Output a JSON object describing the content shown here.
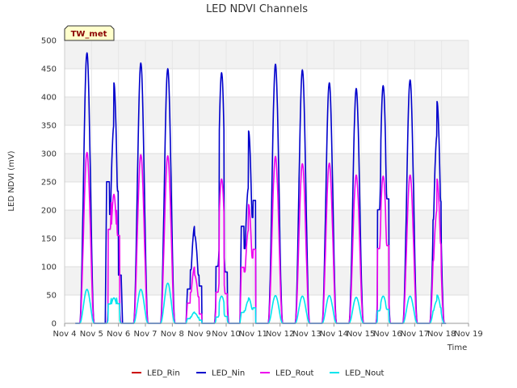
{
  "chart_data": {
    "type": "line",
    "title": "LED NDVI Channels",
    "xlabel": "Time",
    "ylabel": "LED NDVI (mV)",
    "site_label": "TW_met",
    "ylim": [
      0,
      500
    ],
    "yticks": [
      0,
      50,
      100,
      150,
      200,
      250,
      300,
      350,
      400,
      450,
      500
    ],
    "xlim": [
      4,
      19
    ],
    "xticks": [
      4,
      5,
      6,
      7,
      8,
      9,
      10,
      11,
      12,
      13,
      14,
      15,
      16,
      17,
      18,
      19
    ],
    "xtick_labels": [
      "Nov 4",
      "Nov 5",
      "Nov 6",
      "Nov 7",
      "Nov 8",
      "Nov 9",
      "Nov 10",
      "Nov 11",
      "Nov 12",
      "Nov 13",
      "Nov 14",
      "Nov 15",
      "Nov 16",
      "Nov 17",
      "Nov 18",
      "Nov 19"
    ],
    "grid": true,
    "legend_position": "bottom",
    "series": [
      {
        "name": "LED_Rin",
        "color": "#cc0000",
        "daily_peaks": []
      },
      {
        "name": "LED_Nin",
        "color": "#0000cc",
        "daily_peaks": [
          {
            "day": 4.83,
            "values": [
              478
            ]
          },
          {
            "day": 5.83,
            "values": [
              455,
              350,
              425,
              155
            ]
          },
          {
            "day": 6.83,
            "values": [
              460
            ]
          },
          {
            "day": 7.83,
            "values": [
              450
            ]
          },
          {
            "day": 8.83,
            "values": [
              110,
              172,
              155,
              120
            ]
          },
          {
            "day": 9.83,
            "values": [
              183,
              443,
              165
            ]
          },
          {
            "day": 10.83,
            "values": [
              312,
              240,
              340,
              395
            ]
          },
          {
            "day": 11.83,
            "values": [
              458
            ]
          },
          {
            "day": 12.83,
            "values": [
              448
            ]
          },
          {
            "day": 13.83,
            "values": [
              425
            ]
          },
          {
            "day": 14.83,
            "values": [
              415
            ]
          },
          {
            "day": 15.83,
            "values": [
              365,
              420,
              400
            ]
          },
          {
            "day": 16.83,
            "values": [
              430
            ]
          },
          {
            "day": 17.83,
            "values": [
              333,
              392
            ]
          }
        ]
      },
      {
        "name": "LED_Rout",
        "color": "#ee00ee",
        "daily_peaks": [
          {
            "day": 4.83,
            "values": [
              302
            ]
          },
          {
            "day": 5.83,
            "values": [
              302,
              228,
              282
            ]
          },
          {
            "day": 6.83,
            "values": [
              298
            ]
          },
          {
            "day": 7.83,
            "values": [
              296
            ]
          },
          {
            "day": 8.83,
            "values": [
              65,
              100,
              85,
              30
            ]
          },
          {
            "day": 9.83,
            "values": [
              100,
              255,
              95
            ]
          },
          {
            "day": 10.83,
            "values": [
              180,
              165,
              210,
              238
            ]
          },
          {
            "day": 11.83,
            "values": [
              295
            ]
          },
          {
            "day": 12.83,
            "values": [
              282
            ]
          },
          {
            "day": 13.83,
            "values": [
              283
            ]
          },
          {
            "day": 14.83,
            "values": [
              262
            ]
          },
          {
            "day": 15.83,
            "values": [
              240,
              260,
              250
            ]
          },
          {
            "day": 16.83,
            "values": [
              262
            ]
          },
          {
            "day": 17.83,
            "values": [
              200,
              255
            ]
          }
        ]
      },
      {
        "name": "LED_Nout",
        "color": "#00e5ee",
        "daily_peaks": [
          {
            "day": 4.83,
            "values": [
              60
            ]
          },
          {
            "day": 5.83,
            "values": [
              62,
              45,
              63
            ]
          },
          {
            "day": 6.83,
            "values": [
              60
            ]
          },
          {
            "day": 7.83,
            "values": [
              71
            ]
          },
          {
            "day": 8.83,
            "values": [
              15,
              20,
              18,
              10
            ]
          },
          {
            "day": 9.83,
            "values": [
              20,
              48,
              22
            ]
          },
          {
            "day": 10.83,
            "values": [
              35,
              40,
              45,
              50
            ]
          },
          {
            "day": 11.83,
            "values": [
              49
            ]
          },
          {
            "day": 12.83,
            "values": [
              48
            ]
          },
          {
            "day": 13.83,
            "values": [
              49
            ]
          },
          {
            "day": 14.83,
            "values": [
              46
            ]
          },
          {
            "day": 15.83,
            "values": [
              40,
              48,
              45
            ]
          },
          {
            "day": 16.83,
            "values": [
              48
            ]
          },
          {
            "day": 17.83,
            "values": [
              40,
              50
            ]
          }
        ]
      }
    ]
  }
}
